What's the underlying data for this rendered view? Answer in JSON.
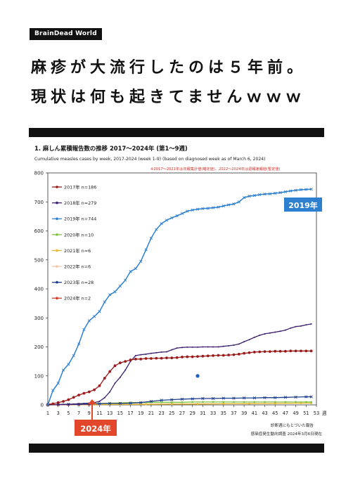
{
  "brand": "BrainDead World",
  "headline": {
    "line1": "麻疹が大流行したのは５年前。",
    "line2": "現状は何も起きてませんｗｗｗ"
  },
  "chart_data": {
    "type": "line",
    "title": "1. 麻しん累積報告数の推移  2017～2024年 (第1～9週)",
    "subtitle": "Cumulative measles cases by week, 2017-2024 (week 1-9)  (based on diagnosed week as of March 6, 2024)",
    "note": "※2017～2021年は年報集計値(確定値)、2022～2024年は週報速報値(暫定値)",
    "xlabel": "週",
    "ylabel": "",
    "xlim": [
      1,
      53
    ],
    "ylim": [
      0,
      800
    ],
    "xticks": [
      1,
      3,
      5,
      7,
      9,
      11,
      13,
      15,
      17,
      19,
      21,
      23,
      25,
      27,
      29,
      31,
      33,
      35,
      37,
      39,
      41,
      43,
      45,
      47,
      49,
      51,
      53
    ],
    "yticks": [
      0,
      100,
      200,
      300,
      400,
      500,
      600,
      700,
      800
    ],
    "grid": false,
    "legend_position": "top-left",
    "series": [
      {
        "name": "2017年 n=186",
        "color": "#9b1a1a",
        "x": [
          1,
          2,
          3,
          4,
          5,
          6,
          7,
          8,
          9,
          10,
          11,
          12,
          13,
          14,
          15,
          16,
          17,
          18,
          19,
          20,
          21,
          22,
          23,
          24,
          25,
          26,
          27,
          28,
          29,
          30,
          31,
          32,
          33,
          34,
          35,
          36,
          37,
          38,
          39,
          40,
          41,
          42,
          43,
          44,
          45,
          46,
          47,
          48,
          49,
          50,
          51,
          52
        ],
        "values": [
          2,
          4,
          8,
          12,
          18,
          26,
          34,
          40,
          45,
          52,
          66,
          92,
          115,
          135,
          145,
          150,
          155,
          158,
          158,
          160,
          160,
          161,
          161,
          162,
          162,
          163,
          165,
          166,
          166,
          167,
          168,
          169,
          170,
          171,
          171,
          172,
          173,
          175,
          178,
          180,
          182,
          183,
          184,
          184,
          185,
          185,
          185,
          186,
          186,
          186,
          186,
          186
        ]
      },
      {
        "name": "2018年 n=279",
        "color": "#3d1f6e",
        "x": [
          1,
          2,
          3,
          4,
          5,
          6,
          7,
          8,
          9,
          10,
          11,
          12,
          13,
          14,
          15,
          16,
          17,
          18,
          19,
          20,
          21,
          22,
          23,
          24,
          25,
          26,
          27,
          28,
          29,
          30,
          31,
          32,
          33,
          34,
          35,
          36,
          37,
          38,
          39,
          40,
          41,
          42,
          43,
          44,
          45,
          46,
          47,
          48,
          49,
          50,
          51,
          52
        ],
        "values": [
          0,
          1,
          1,
          2,
          2,
          3,
          4,
          5,
          6,
          8,
          12,
          25,
          45,
          75,
          95,
          120,
          150,
          170,
          173,
          175,
          178,
          180,
          182,
          183,
          190,
          196,
          198,
          199,
          199,
          199,
          200,
          200,
          200,
          200,
          202,
          204,
          206,
          210,
          218,
          225,
          233,
          240,
          245,
          248,
          251,
          254,
          258,
          265,
          270,
          272,
          276,
          279
        ]
      },
      {
        "name": "2019年 n=744",
        "color": "#2d7fd0",
        "x": [
          1,
          2,
          3,
          4,
          5,
          6,
          7,
          8,
          9,
          10,
          11,
          12,
          13,
          14,
          15,
          16,
          17,
          18,
          19,
          20,
          21,
          22,
          23,
          24,
          25,
          26,
          27,
          28,
          29,
          30,
          31,
          32,
          33,
          34,
          35,
          36,
          37,
          38,
          39,
          40,
          41,
          42,
          43,
          44,
          45,
          46,
          47,
          48,
          49,
          50,
          51,
          52
        ],
        "values": [
          0,
          50,
          75,
          120,
          140,
          170,
          210,
          260,
          290,
          305,
          322,
          355,
          380,
          390,
          410,
          430,
          460,
          470,
          495,
          535,
          575,
          605,
          625,
          637,
          645,
          652,
          660,
          668,
          672,
          675,
          677,
          678,
          680,
          682,
          686,
          690,
          693,
          700,
          715,
          720,
          722,
          725,
          727,
          728,
          730,
          732,
          735,
          738,
          740,
          742,
          743,
          744
        ]
      },
      {
        "name": "2020年 n=10",
        "color": "#7fc241",
        "x": [
          1,
          3,
          5,
          7,
          9,
          11,
          13,
          15,
          17,
          19,
          21,
          23,
          25,
          27,
          29,
          31,
          33,
          35,
          37,
          39,
          41,
          43,
          45,
          47,
          49,
          51,
          52
        ],
        "values": [
          0,
          1,
          2,
          3,
          4,
          5,
          6,
          7,
          8,
          8,
          9,
          9,
          9,
          9,
          10,
          10,
          10,
          10,
          10,
          10,
          10,
          10,
          10,
          10,
          10,
          10,
          10
        ]
      },
      {
        "name": "2021年 n=6",
        "color": "#e8b830",
        "x": [
          1,
          5,
          10,
          15,
          20,
          25,
          30,
          35,
          40,
          45,
          50,
          52
        ],
        "values": [
          0,
          1,
          1,
          2,
          2,
          3,
          3,
          4,
          4,
          5,
          6,
          6
        ]
      },
      {
        "name": "2022年 n=6",
        "color": "#f2c8a0",
        "x": [
          1,
          5,
          10,
          15,
          20,
          25,
          30,
          35,
          40,
          45,
          50,
          52
        ],
        "values": [
          0,
          1,
          1,
          2,
          3,
          3,
          4,
          4,
          5,
          5,
          6,
          6
        ]
      },
      {
        "name": "2023年 n=28",
        "color": "#1d3f8c",
        "x": [
          1,
          3,
          5,
          7,
          9,
          11,
          13,
          15,
          17,
          19,
          21,
          23,
          25,
          27,
          29,
          31,
          33,
          35,
          37,
          39,
          41,
          43,
          45,
          47,
          49,
          51,
          52
        ],
        "values": [
          0,
          1,
          2,
          2,
          3,
          4,
          5,
          5,
          6,
          8,
          12,
          16,
          18,
          20,
          21,
          22,
          22,
          23,
          23,
          24,
          24,
          25,
          25,
          26,
          27,
          28,
          28
        ]
      },
      {
        "name": "2024年 n=2",
        "color": "#d63a26",
        "x": [
          1,
          3,
          5,
          7,
          9
        ],
        "values": [
          0,
          1,
          1,
          2,
          2
        ]
      }
    ],
    "annotations": [
      {
        "text": "2019年",
        "bg": "#2d7fd0"
      },
      {
        "text": "2024年",
        "bg": "#e2462b"
      }
    ],
    "outlier_point": {
      "x": 30,
      "y": 100,
      "color": "#1d5fc4"
    },
    "footnotes": [
      "診断週にもとづいた報告",
      "感染症発生動向調査 2024年3月6日現在"
    ]
  }
}
